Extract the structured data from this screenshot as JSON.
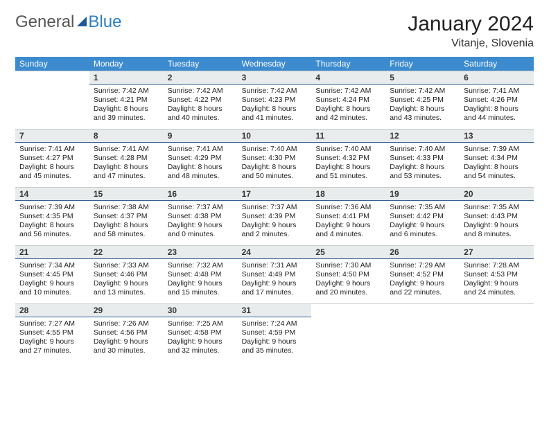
{
  "branding": {
    "word1": "General",
    "word2": "Blue",
    "color_general": "#555555",
    "color_blue": "#2f7fc1",
    "triangle_color": "#1d5a96"
  },
  "header": {
    "month_title": "January 2024",
    "location": "Vitanje, Slovenia"
  },
  "colors": {
    "header_bg": "#3d8bcf",
    "header_text": "#ffffff",
    "daynum_bg": "#e8eced",
    "daynum_border": "#2f5f91",
    "cell_border": "#cccccc",
    "text": "#222222"
  },
  "days_of_week": [
    "Sunday",
    "Monday",
    "Tuesday",
    "Wednesday",
    "Thursday",
    "Friday",
    "Saturday"
  ],
  "weeks": [
    [
      {
        "day": null
      },
      {
        "day": "1",
        "sunrise": "Sunrise: 7:42 AM",
        "sunset": "Sunset: 4:21 PM",
        "daylight1": "Daylight: 8 hours",
        "daylight2": "and 39 minutes."
      },
      {
        "day": "2",
        "sunrise": "Sunrise: 7:42 AM",
        "sunset": "Sunset: 4:22 PM",
        "daylight1": "Daylight: 8 hours",
        "daylight2": "and 40 minutes."
      },
      {
        "day": "3",
        "sunrise": "Sunrise: 7:42 AM",
        "sunset": "Sunset: 4:23 PM",
        "daylight1": "Daylight: 8 hours",
        "daylight2": "and 41 minutes."
      },
      {
        "day": "4",
        "sunrise": "Sunrise: 7:42 AM",
        "sunset": "Sunset: 4:24 PM",
        "daylight1": "Daylight: 8 hours",
        "daylight2": "and 42 minutes."
      },
      {
        "day": "5",
        "sunrise": "Sunrise: 7:42 AM",
        "sunset": "Sunset: 4:25 PM",
        "daylight1": "Daylight: 8 hours",
        "daylight2": "and 43 minutes."
      },
      {
        "day": "6",
        "sunrise": "Sunrise: 7:41 AM",
        "sunset": "Sunset: 4:26 PM",
        "daylight1": "Daylight: 8 hours",
        "daylight2": "and 44 minutes."
      }
    ],
    [
      {
        "day": "7",
        "sunrise": "Sunrise: 7:41 AM",
        "sunset": "Sunset: 4:27 PM",
        "daylight1": "Daylight: 8 hours",
        "daylight2": "and 45 minutes."
      },
      {
        "day": "8",
        "sunrise": "Sunrise: 7:41 AM",
        "sunset": "Sunset: 4:28 PM",
        "daylight1": "Daylight: 8 hours",
        "daylight2": "and 47 minutes."
      },
      {
        "day": "9",
        "sunrise": "Sunrise: 7:41 AM",
        "sunset": "Sunset: 4:29 PM",
        "daylight1": "Daylight: 8 hours",
        "daylight2": "and 48 minutes."
      },
      {
        "day": "10",
        "sunrise": "Sunrise: 7:40 AM",
        "sunset": "Sunset: 4:30 PM",
        "daylight1": "Daylight: 8 hours",
        "daylight2": "and 50 minutes."
      },
      {
        "day": "11",
        "sunrise": "Sunrise: 7:40 AM",
        "sunset": "Sunset: 4:32 PM",
        "daylight1": "Daylight: 8 hours",
        "daylight2": "and 51 minutes."
      },
      {
        "day": "12",
        "sunrise": "Sunrise: 7:40 AM",
        "sunset": "Sunset: 4:33 PM",
        "daylight1": "Daylight: 8 hours",
        "daylight2": "and 53 minutes."
      },
      {
        "day": "13",
        "sunrise": "Sunrise: 7:39 AM",
        "sunset": "Sunset: 4:34 PM",
        "daylight1": "Daylight: 8 hours",
        "daylight2": "and 54 minutes."
      }
    ],
    [
      {
        "day": "14",
        "sunrise": "Sunrise: 7:39 AM",
        "sunset": "Sunset: 4:35 PM",
        "daylight1": "Daylight: 8 hours",
        "daylight2": "and 56 minutes."
      },
      {
        "day": "15",
        "sunrise": "Sunrise: 7:38 AM",
        "sunset": "Sunset: 4:37 PM",
        "daylight1": "Daylight: 8 hours",
        "daylight2": "and 58 minutes."
      },
      {
        "day": "16",
        "sunrise": "Sunrise: 7:37 AM",
        "sunset": "Sunset: 4:38 PM",
        "daylight1": "Daylight: 9 hours",
        "daylight2": "and 0 minutes."
      },
      {
        "day": "17",
        "sunrise": "Sunrise: 7:37 AM",
        "sunset": "Sunset: 4:39 PM",
        "daylight1": "Daylight: 9 hours",
        "daylight2": "and 2 minutes."
      },
      {
        "day": "18",
        "sunrise": "Sunrise: 7:36 AM",
        "sunset": "Sunset: 4:41 PM",
        "daylight1": "Daylight: 9 hours",
        "daylight2": "and 4 minutes."
      },
      {
        "day": "19",
        "sunrise": "Sunrise: 7:35 AM",
        "sunset": "Sunset: 4:42 PM",
        "daylight1": "Daylight: 9 hours",
        "daylight2": "and 6 minutes."
      },
      {
        "day": "20",
        "sunrise": "Sunrise: 7:35 AM",
        "sunset": "Sunset: 4:43 PM",
        "daylight1": "Daylight: 9 hours",
        "daylight2": "and 8 minutes."
      }
    ],
    [
      {
        "day": "21",
        "sunrise": "Sunrise: 7:34 AM",
        "sunset": "Sunset: 4:45 PM",
        "daylight1": "Daylight: 9 hours",
        "daylight2": "and 10 minutes."
      },
      {
        "day": "22",
        "sunrise": "Sunrise: 7:33 AM",
        "sunset": "Sunset: 4:46 PM",
        "daylight1": "Daylight: 9 hours",
        "daylight2": "and 13 minutes."
      },
      {
        "day": "23",
        "sunrise": "Sunrise: 7:32 AM",
        "sunset": "Sunset: 4:48 PM",
        "daylight1": "Daylight: 9 hours",
        "daylight2": "and 15 minutes."
      },
      {
        "day": "24",
        "sunrise": "Sunrise: 7:31 AM",
        "sunset": "Sunset: 4:49 PM",
        "daylight1": "Daylight: 9 hours",
        "daylight2": "and 17 minutes."
      },
      {
        "day": "25",
        "sunrise": "Sunrise: 7:30 AM",
        "sunset": "Sunset: 4:50 PM",
        "daylight1": "Daylight: 9 hours",
        "daylight2": "and 20 minutes."
      },
      {
        "day": "26",
        "sunrise": "Sunrise: 7:29 AM",
        "sunset": "Sunset: 4:52 PM",
        "daylight1": "Daylight: 9 hours",
        "daylight2": "and 22 minutes."
      },
      {
        "day": "27",
        "sunrise": "Sunrise: 7:28 AM",
        "sunset": "Sunset: 4:53 PM",
        "daylight1": "Daylight: 9 hours",
        "daylight2": "and 24 minutes."
      }
    ],
    [
      {
        "day": "28",
        "sunrise": "Sunrise: 7:27 AM",
        "sunset": "Sunset: 4:55 PM",
        "daylight1": "Daylight: 9 hours",
        "daylight2": "and 27 minutes."
      },
      {
        "day": "29",
        "sunrise": "Sunrise: 7:26 AM",
        "sunset": "Sunset: 4:56 PM",
        "daylight1": "Daylight: 9 hours",
        "daylight2": "and 30 minutes."
      },
      {
        "day": "30",
        "sunrise": "Sunrise: 7:25 AM",
        "sunset": "Sunset: 4:58 PM",
        "daylight1": "Daylight: 9 hours",
        "daylight2": "and 32 minutes."
      },
      {
        "day": "31",
        "sunrise": "Sunrise: 7:24 AM",
        "sunset": "Sunset: 4:59 PM",
        "daylight1": "Daylight: 9 hours",
        "daylight2": "and 35 minutes."
      },
      {
        "day": null
      },
      {
        "day": null
      },
      {
        "day": null
      }
    ]
  ]
}
